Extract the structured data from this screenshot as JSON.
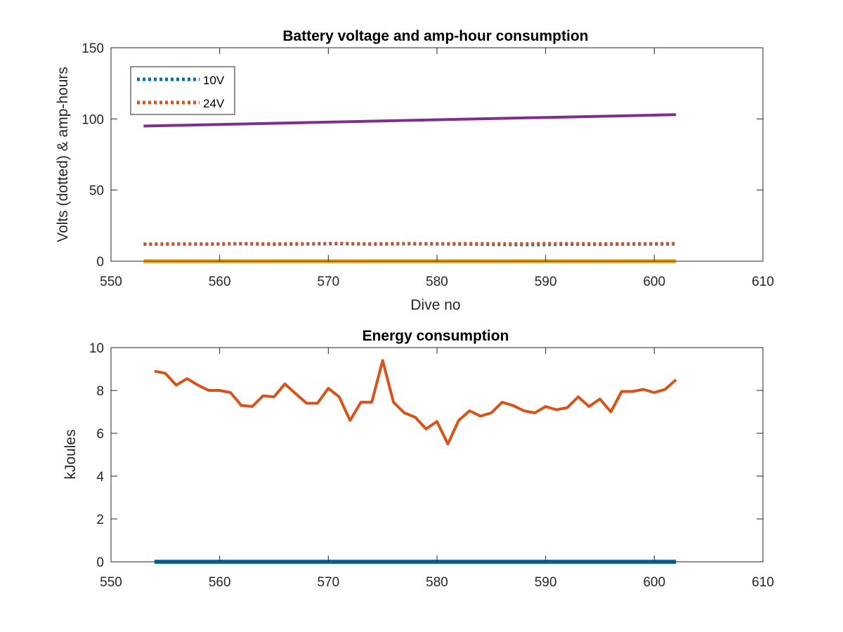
{
  "chart_data": [
    {
      "type": "line",
      "title": "Battery voltage and amp-hour consumption",
      "xlabel": "Dive no",
      "ylabel": "Volts (dotted) & amp-hours",
      "xlim": [
        550,
        610
      ],
      "ylim": [
        0,
        150
      ],
      "xticks": [
        550,
        560,
        570,
        580,
        590,
        600,
        610
      ],
      "yticks": [
        0,
        50,
        100,
        150
      ],
      "grid": false,
      "legend": {
        "position": "top-left",
        "entries": [
          "10V",
          "24V"
        ]
      },
      "series": [
        {
          "name": "10V",
          "style": "dotted",
          "color": "#0072BD",
          "x": [
            553,
            556,
            559,
            562,
            565,
            568,
            571,
            574,
            577,
            580,
            583,
            586,
            589,
            592,
            595,
            598,
            602
          ],
          "y": [
            11.8,
            12.0,
            11.9,
            12.1,
            11.8,
            12.0,
            12.2,
            11.9,
            12.1,
            12.0,
            11.9,
            11.6,
            11.5,
            11.8,
            11.7,
            11.9,
            12.0
          ]
        },
        {
          "name": "24V",
          "style": "dotted",
          "color": "#D95319",
          "x": [
            553,
            556,
            559,
            562,
            565,
            568,
            571,
            574,
            577,
            580,
            583,
            586,
            589,
            592,
            595,
            598,
            602
          ],
          "y": [
            12.2,
            12.4,
            12.3,
            12.6,
            12.4,
            12.5,
            12.7,
            12.4,
            12.6,
            12.5,
            12.6,
            12.4,
            12.5,
            12.6,
            12.4,
            12.5,
            12.6
          ]
        },
        {
          "style": "solid",
          "color": "#7E2F8E",
          "x": [
            553,
            602
          ],
          "y": [
            95,
            103
          ]
        },
        {
          "style": "solid",
          "color": "#EDB120",
          "x": [
            553,
            602
          ],
          "y": [
            0,
            0
          ]
        }
      ]
    },
    {
      "type": "line",
      "title": "Energy consumption",
      "xlabel": "",
      "ylabel": "kJoules",
      "xlim": [
        550,
        610
      ],
      "ylim": [
        0,
        10
      ],
      "xticks": [
        550,
        560,
        570,
        580,
        590,
        600,
        610
      ],
      "yticks": [
        0,
        2,
        4,
        6,
        8,
        10
      ],
      "grid": false,
      "series": [
        {
          "style": "solid",
          "color": "#D95319",
          "x": [
            554,
            555,
            556,
            557,
            558,
            559,
            560,
            561,
            562,
            563,
            564,
            565,
            566,
            567,
            568,
            569,
            570,
            571,
            572,
            573,
            574,
            575,
            576,
            577,
            578,
            579,
            580,
            581,
            582,
            583,
            584,
            585,
            586,
            587,
            588,
            589,
            590,
            591,
            592,
            593,
            594,
            595,
            596,
            597,
            598,
            599,
            600,
            601,
            602
          ],
          "y": [
            8.9,
            8.8,
            8.25,
            8.55,
            8.25,
            8.0,
            8.0,
            7.9,
            7.3,
            7.25,
            7.75,
            7.7,
            8.3,
            7.85,
            7.4,
            7.4,
            8.1,
            7.7,
            6.6,
            7.45,
            7.45,
            9.4,
            7.45,
            6.95,
            6.75,
            6.2,
            6.55,
            5.5,
            6.6,
            7.05,
            6.8,
            6.95,
            7.45,
            7.3,
            7.05,
            6.95,
            7.25,
            7.1,
            7.2,
            7.7,
            7.25,
            7.6,
            7.0,
            7.95,
            7.95,
            8.05,
            7.9,
            8.05,
            8.5
          ]
        },
        {
          "style": "solid",
          "color": "#0072BD",
          "x": [
            554,
            602
          ],
          "y": [
            0,
            0
          ]
        }
      ]
    }
  ]
}
